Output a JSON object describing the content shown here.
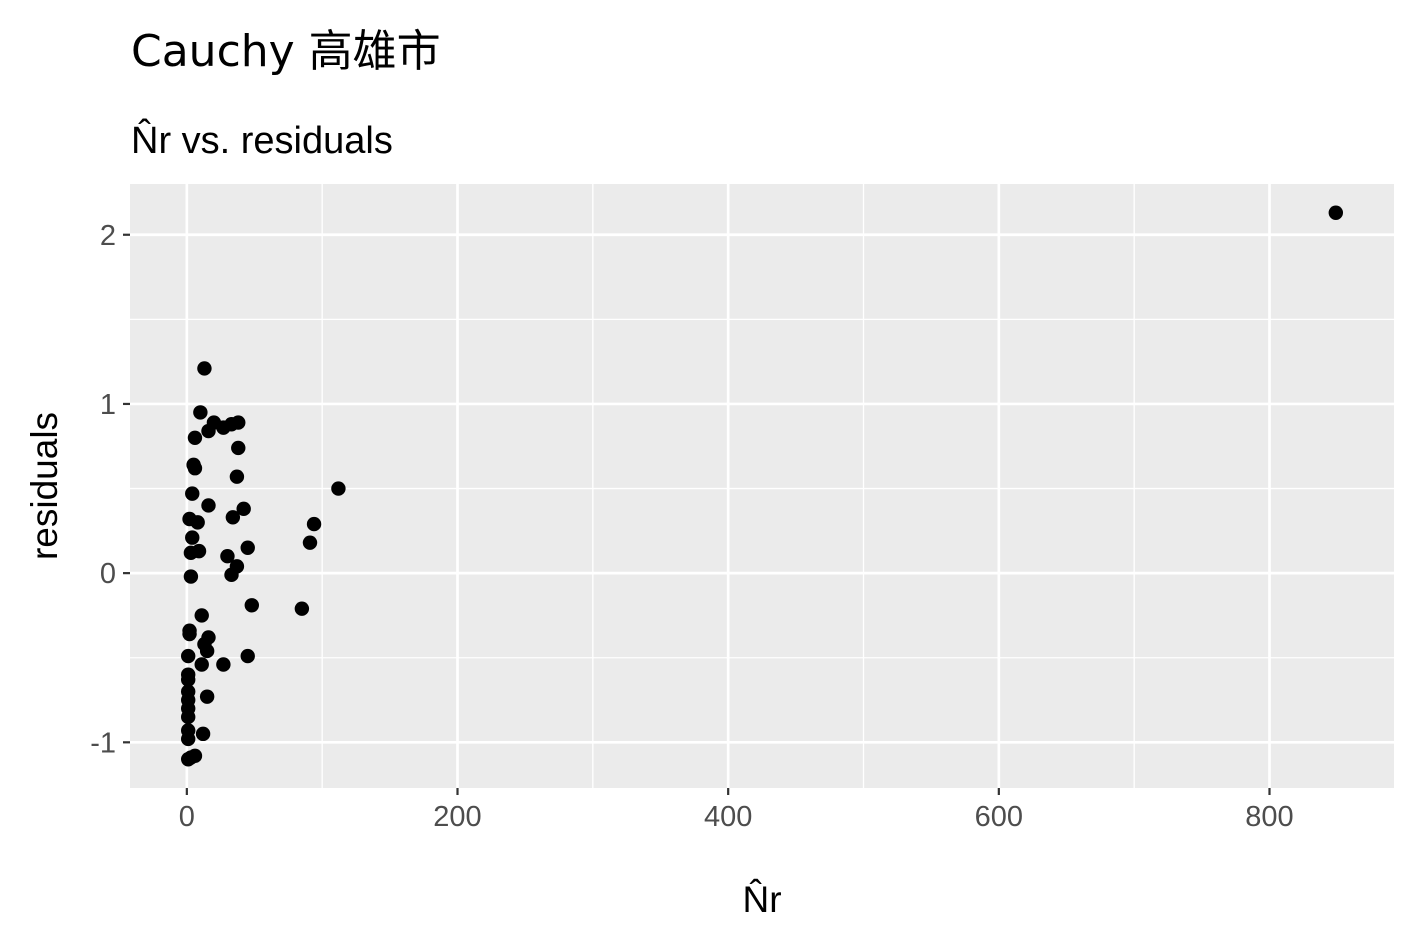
{
  "chart_data": {
    "type": "scatter",
    "title": "Cauchy 高雄市",
    "subtitle": "N̂r vs. residuals",
    "xlabel": "N̂r",
    "ylabel": "residuals",
    "xlim": [
      -42,
      892
    ],
    "ylim": [
      -1.27,
      2.3
    ],
    "xticks": [
      0,
      200,
      400,
      600,
      800
    ],
    "xtick_labels": [
      "0",
      "200",
      "400",
      "600",
      "800"
    ],
    "yticks": [
      -1,
      0,
      1,
      2
    ],
    "ytick_labels": [
      "-1",
      "0",
      "1",
      "2"
    ],
    "grid": true,
    "legend": "none",
    "colors": {
      "panel": "#ebebeb",
      "grid": "#ffffff",
      "point": "#000000",
      "tick_text": "#4d4d4d",
      "tick_mark": "#333333"
    },
    "points": [
      {
        "x": 849,
        "y": 2.13
      },
      {
        "x": 112,
        "y": 0.5
      },
      {
        "x": 94,
        "y": 0.29
      },
      {
        "x": 91,
        "y": 0.18
      },
      {
        "x": 85,
        "y": -0.21
      },
      {
        "x": 48,
        "y": -0.19
      },
      {
        "x": 45,
        "y": 0.15
      },
      {
        "x": 45,
        "y": -0.49
      },
      {
        "x": 42,
        "y": 0.38
      },
      {
        "x": 38,
        "y": 0.89
      },
      {
        "x": 38,
        "y": 0.74
      },
      {
        "x": 37,
        "y": 0.57
      },
      {
        "x": 37,
        "y": 0.04
      },
      {
        "x": 34,
        "y": 0.33
      },
      {
        "x": 33,
        "y": -0.01
      },
      {
        "x": 33,
        "y": 0.88
      },
      {
        "x": 30,
        "y": 0.1
      },
      {
        "x": 27,
        "y": 0.86
      },
      {
        "x": 27,
        "y": -0.54
      },
      {
        "x": 20,
        "y": 0.89
      },
      {
        "x": 16,
        "y": 0.4
      },
      {
        "x": 16,
        "y": 0.84
      },
      {
        "x": 16,
        "y": -0.38
      },
      {
        "x": 15,
        "y": -0.46
      },
      {
        "x": 15,
        "y": -0.73
      },
      {
        "x": 13,
        "y": 1.21
      },
      {
        "x": 13,
        "y": -0.42
      },
      {
        "x": 12,
        "y": -0.95
      },
      {
        "x": 11,
        "y": -0.25
      },
      {
        "x": 11,
        "y": -0.54
      },
      {
        "x": 10,
        "y": 0.95
      },
      {
        "x": 9,
        "y": 0.13
      },
      {
        "x": 8,
        "y": 0.3
      },
      {
        "x": 6,
        "y": 0.8
      },
      {
        "x": 6,
        "y": 0.62
      },
      {
        "x": 6,
        "y": -1.08
      },
      {
        "x": 5,
        "y": 0.64
      },
      {
        "x": 4,
        "y": 0.47
      },
      {
        "x": 4,
        "y": 0.21
      },
      {
        "x": 3,
        "y": 0.12
      },
      {
        "x": 3,
        "y": -0.02
      },
      {
        "x": 3,
        "y": -1.09
      },
      {
        "x": 2,
        "y": 0.32
      },
      {
        "x": 2,
        "y": -0.34
      },
      {
        "x": 2,
        "y": -0.36
      },
      {
        "x": 1,
        "y": -0.49
      },
      {
        "x": 1,
        "y": -0.6
      },
      {
        "x": 1,
        "y": -0.63
      },
      {
        "x": 1,
        "y": -0.7
      },
      {
        "x": 1,
        "y": -0.75
      },
      {
        "x": 1,
        "y": -0.8
      },
      {
        "x": 1,
        "y": -0.85
      },
      {
        "x": 1,
        "y": -0.93
      },
      {
        "x": 1,
        "y": -0.98
      },
      {
        "x": 1,
        "y": -1.1
      }
    ]
  }
}
